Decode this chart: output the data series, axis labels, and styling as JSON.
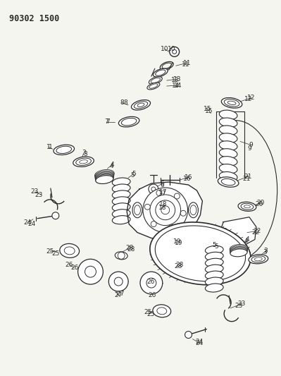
{
  "title": "90302 1500",
  "bg_color": "#f5f5f0",
  "line_color": "#2a2a2a",
  "figsize": [
    3.99,
    5.33
  ],
  "dpi": 100
}
